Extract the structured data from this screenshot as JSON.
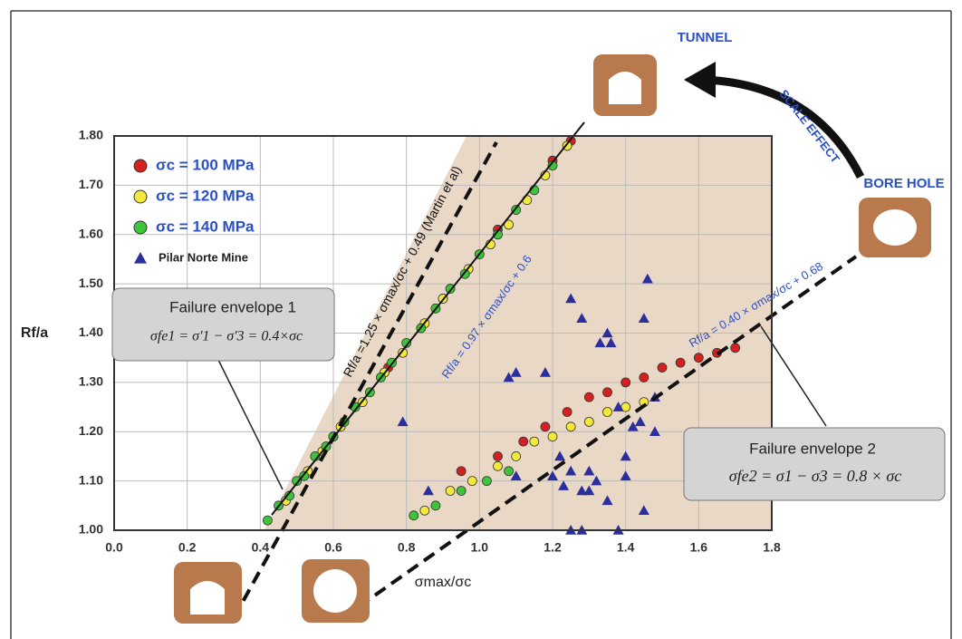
{
  "chart_data": {
    "type": "scatter",
    "xlabel": "σmax/σc",
    "ylabel": "Rf/a",
    "xlim": [
      0.0,
      1.8
    ],
    "ylim": [
      1.0,
      1.8
    ],
    "xticks": [
      {
        "value": 0.0,
        "label": "0.0"
      },
      0.2,
      0.4,
      0.6,
      0.8,
      {
        "value": 1.0,
        "label": "1.0"
      },
      1.2,
      1.4,
      1.6,
      1.8
    ],
    "yticks": [
      {
        "value": 1.0,
        "label": "1.00"
      },
      {
        "value": 1.1,
        "label": "1.10"
      },
      {
        "value": 1.2,
        "label": "1.20"
      },
      {
        "value": 1.3,
        "label": "1.30"
      },
      {
        "value": 1.4,
        "label": "1.40"
      },
      {
        "value": 1.5,
        "label": "1.50"
      },
      {
        "value": 1.6,
        "label": "1.60"
      },
      {
        "value": 1.7,
        "label": "1.70"
      },
      {
        "value": 1.8,
        "label": "1.80"
      }
    ],
    "grid": true,
    "legend": "upper left",
    "series": [
      {
        "name": "σc = 100 MPa",
        "color": "#d42020",
        "marker": "circle",
        "x": [
          0.6,
          0.75,
          0.9,
          1.05,
          1.2,
          1.25,
          0.95,
          1.05,
          1.12,
          1.18,
          1.24,
          1.3,
          1.35,
          1.4,
          1.45,
          1.5,
          1.55,
          1.6,
          1.65,
          1.7
        ],
        "values": [
          1.19,
          1.33,
          1.47,
          1.61,
          1.75,
          1.79,
          1.12,
          1.15,
          1.18,
          1.21,
          1.24,
          1.27,
          1.28,
          1.3,
          1.31,
          1.33,
          1.34,
          1.35,
          1.36,
          1.37
        ]
      },
      {
        "name": "σc = 120 MPa",
        "color": "#f4e83a",
        "marker": "circle",
        "x": [
          0.47,
          0.53,
          0.57,
          0.62,
          0.68,
          0.74,
          0.79,
          0.85,
          0.9,
          0.97,
          1.03,
          1.08,
          1.13,
          1.18,
          1.24,
          0.85,
          0.92,
          0.98,
          1.05,
          1.1,
          1.15,
          1.2,
          1.25,
          1.3,
          1.35,
          1.4,
          1.45
        ],
        "values": [
          1.06,
          1.12,
          1.16,
          1.21,
          1.26,
          1.32,
          1.36,
          1.42,
          1.47,
          1.53,
          1.58,
          1.62,
          1.67,
          1.72,
          1.78,
          1.04,
          1.08,
          1.1,
          1.13,
          1.15,
          1.18,
          1.19,
          1.21,
          1.22,
          1.24,
          1.25,
          1.26
        ]
      },
      {
        "name": "σc = 140 MPa",
        "color": "#3ec43a",
        "marker": "circle",
        "x": [
          0.42,
          0.45,
          0.48,
          0.5,
          0.52,
          0.55,
          0.58,
          0.6,
          0.63,
          0.66,
          0.7,
          0.73,
          0.76,
          0.8,
          0.84,
          0.88,
          0.92,
          0.96,
          1.0,
          1.05,
          1.1,
          1.15,
          1.2,
          0.82,
          0.88,
          0.95,
          1.02,
          1.08
        ],
        "values": [
          1.02,
          1.05,
          1.07,
          1.1,
          1.11,
          1.15,
          1.17,
          1.19,
          1.22,
          1.25,
          1.28,
          1.31,
          1.34,
          1.38,
          1.41,
          1.45,
          1.49,
          1.52,
          1.56,
          1.6,
          1.65,
          1.69,
          1.74,
          1.03,
          1.05,
          1.08,
          1.1,
          1.12
        ]
      },
      {
        "name": "Pilar Norte Mine",
        "color": "#2b2f9e",
        "marker": "triangle",
        "x": [
          0.79,
          0.86,
          1.08,
          1.1,
          1.18,
          1.22,
          1.25,
          1.28,
          1.3,
          1.33,
          1.35,
          1.36,
          1.38,
          1.4,
          1.42,
          1.44,
          1.45,
          1.46,
          1.48,
          1.48,
          1.25,
          1.28,
          1.38,
          1.45,
          1.23,
          1.3,
          1.35,
          1.25,
          1.4,
          1.1,
          1.2,
          1.28,
          1.32
        ],
        "values": [
          1.22,
          1.08,
          1.31,
          1.11,
          1.32,
          1.15,
          1.47,
          1.43,
          1.12,
          1.38,
          1.4,
          1.38,
          1.25,
          1.15,
          1.21,
          1.22,
          1.43,
          1.51,
          1.2,
          1.27,
          1.0,
          1.0,
          1.0,
          1.04,
          1.09,
          1.08,
          1.06,
          1.12,
          1.11,
          1.32,
          1.11,
          1.08,
          1.1
        ]
      }
    ],
    "annotations": {
      "martin": "Rf/a =1.25 × σmax/σc + 0.49 (Martin et al)",
      "fit_upper": "Rf/a = 0.97 × σmax/σc + 0.6",
      "fit_lower": "Rf/a = 0.40 × σmax/σc + 0.68",
      "envelope1_title": "Failure envelope 1",
      "envelope1_formula": "σfe1 = σ'1 − σ'3 = 0.4×σc",
      "envelope2_title": "Failure envelope 2",
      "envelope2_formula": "σfe2 = σ1 − σ3 = 0.8 × σc",
      "tunnel": "TUNNEL",
      "bore_hole": "BORE HOLE",
      "scale_effect": "SCALE EFFECT"
    }
  }
}
